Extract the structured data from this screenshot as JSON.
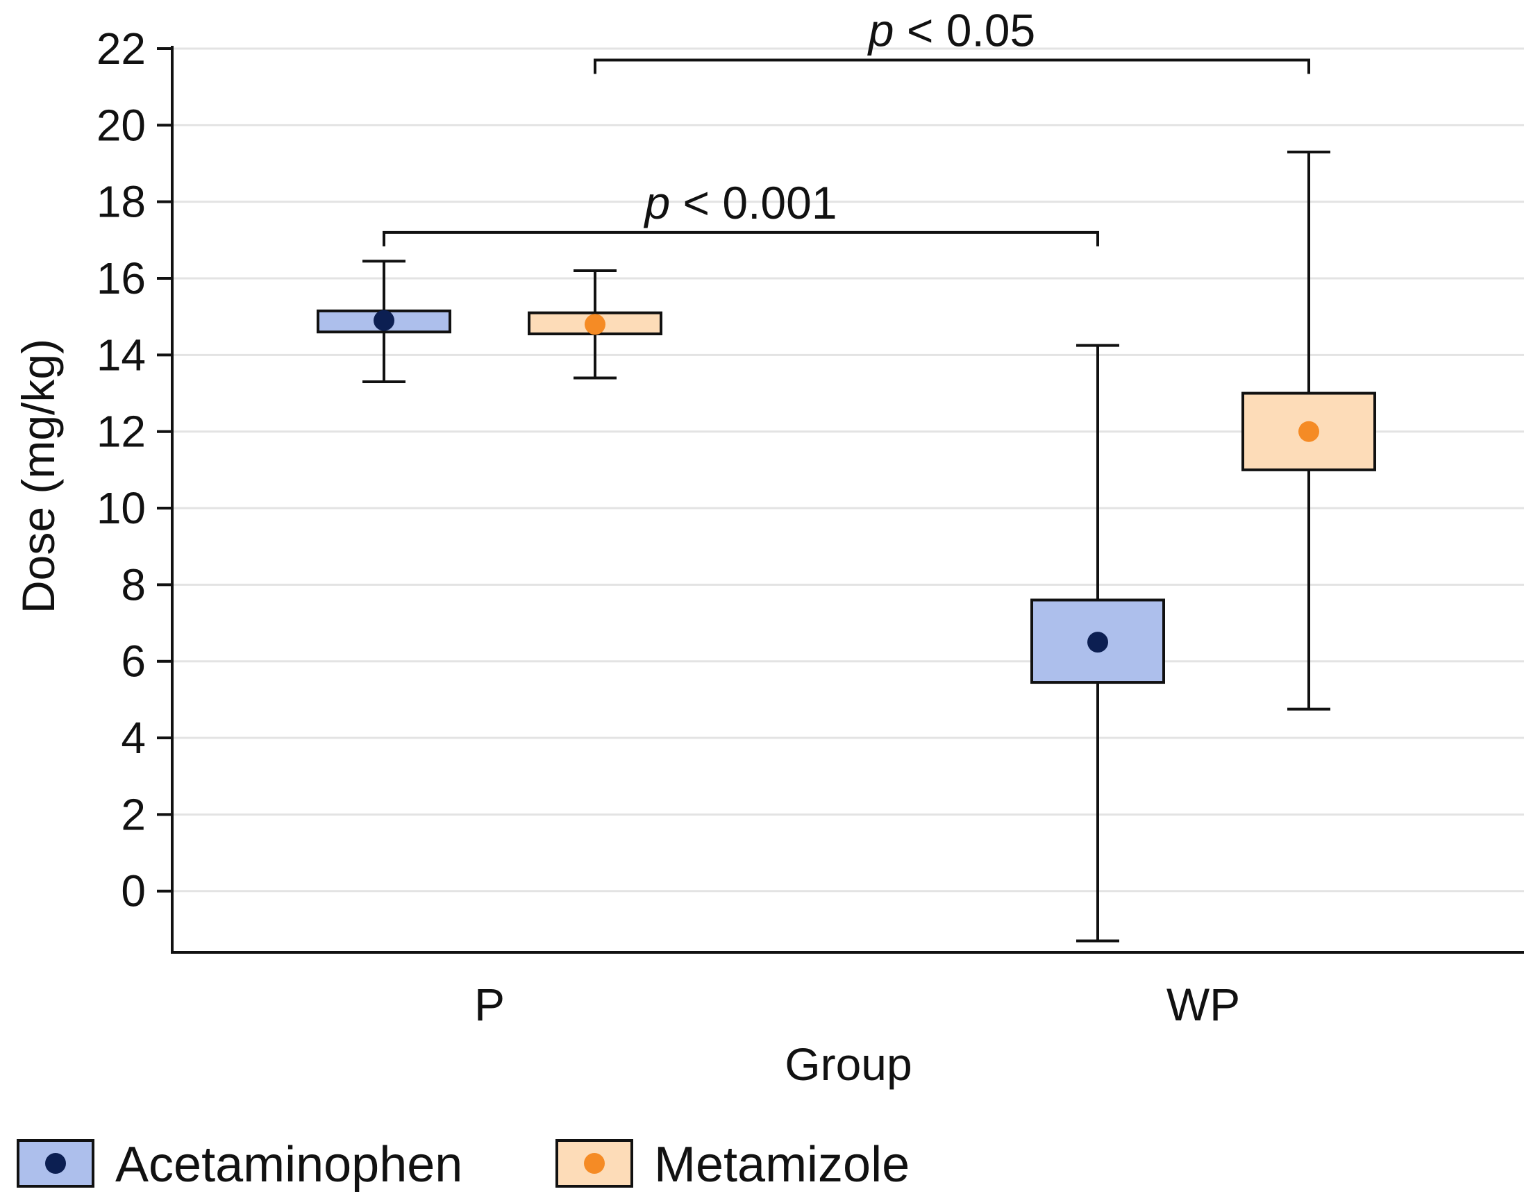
{
  "chart_data": {
    "type": "box",
    "title": "",
    "xlabel": "Group",
    "ylabel": "Dose (mg/kg)",
    "ylim": [
      -1.6,
      22
    ],
    "yticks": [
      0,
      2,
      4,
      6,
      8,
      10,
      12,
      14,
      16,
      18,
      20,
      22
    ],
    "grid": true,
    "categories": [
      "P",
      "WP"
    ],
    "legend_position": "bottom-left",
    "colors": {
      "Acetaminophen": {
        "fill": "#adbfec",
        "marker": "#0c1f52"
      },
      "Metamizole": {
        "fill": "#fddcb8",
        "marker": "#f58b25"
      },
      "line": "#111111",
      "grid": "#e3e3e3"
    },
    "series": [
      {
        "name": "Acetaminophen",
        "boxes": [
          {
            "category": "P",
            "whisker_low": 13.3,
            "q1": 14.6,
            "mean": 14.9,
            "q3": 15.15,
            "whisker_high": 16.45
          },
          {
            "category": "WP",
            "whisker_low": -1.3,
            "q1": 5.45,
            "mean": 6.5,
            "q3": 7.6,
            "whisker_high": 14.25
          }
        ]
      },
      {
        "name": "Metamizole",
        "boxes": [
          {
            "category": "P",
            "whisker_low": 13.4,
            "q1": 14.55,
            "mean": 14.8,
            "q3": 15.1,
            "whisker_high": 16.2
          },
          {
            "category": "WP",
            "whisker_low": 4.75,
            "q1": 11.0,
            "mean": 12.0,
            "q3": 13.0,
            "whisker_high": 19.3
          }
        ]
      }
    ],
    "annotations": [
      {
        "from": {
          "category": "P",
          "series": "Acetaminophen"
        },
        "to": {
          "category": "WP",
          "series": "Acetaminophen"
        },
        "level": 17.2,
        "p_symbol": "p",
        "text": "< 0.001"
      },
      {
        "from": {
          "category": "P",
          "series": "Metamizole"
        },
        "to": {
          "category": "WP",
          "series": "Metamizole"
        },
        "level": 21.7,
        "p_symbol": "p",
        "text": "< 0.05"
      }
    ]
  }
}
